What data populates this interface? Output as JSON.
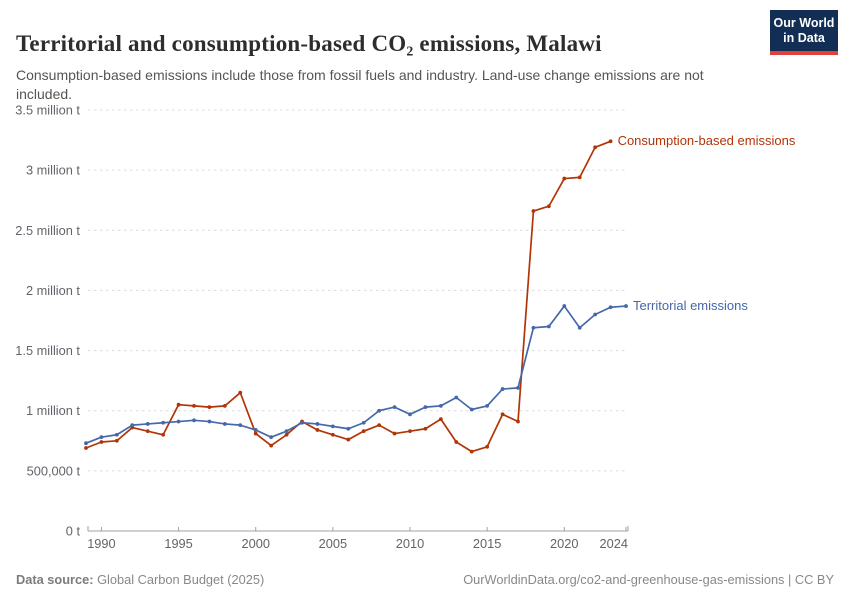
{
  "header": {
    "title": "Territorial and consumption-based CO₂ emissions, Malawi",
    "subtitle": "Consumption-based emissions include those from fossil fuels and industry. Land-use change emissions are not included.",
    "logo": {
      "line1": "Our World",
      "line2": "in Data"
    }
  },
  "chart_data": {
    "type": "line",
    "title": "Territorial and consumption-based CO₂ emissions, Malawi",
    "xlabel": "",
    "ylabel": "",
    "unit": "tonnes of CO₂",
    "xlim": [
      1989,
      2024
    ],
    "ylim": [
      0,
      3500000
    ],
    "grid": "horizontal-dashed",
    "legend_position": "line-end-labels-right",
    "x_ticks": [
      1990,
      1995,
      2000,
      2005,
      2010,
      2015,
      2020,
      2024
    ],
    "y_ticks": [
      {
        "value": 0.0,
        "label": "0 t"
      },
      {
        "value": 0.5,
        "label": "500,000 t"
      },
      {
        "value": 1.0,
        "label": "1 million t"
      },
      {
        "value": 1.5,
        "label": "1.5 million t"
      },
      {
        "value": 2.0,
        "label": "2 million t"
      },
      {
        "value": 2.5,
        "label": "2.5 million t"
      },
      {
        "value": 3.0,
        "label": "3 million t"
      },
      {
        "value": 3.5,
        "label": "3.5 million t"
      }
    ],
    "series": [
      {
        "name": "Consumption-based emissions",
        "color": "#b13507",
        "start_year": 1989,
        "values_million_t": [
          0.69,
          0.74,
          0.75,
          0.86,
          0.83,
          0.8,
          1.05,
          1.04,
          1.03,
          1.04,
          1.15,
          0.81,
          0.71,
          0.8,
          0.91,
          0.84,
          0.8,
          0.76,
          0.83,
          0.88,
          0.81,
          0.83,
          0.85,
          0.93,
          0.74,
          0.66,
          0.7,
          0.97,
          0.91,
          2.66,
          2.7,
          2.93,
          2.94,
          3.19,
          3.24
        ]
      },
      {
        "name": "Territorial emissions",
        "color": "#4568a9",
        "start_year": 1989,
        "values_million_t": [
          0.73,
          0.78,
          0.8,
          0.88,
          0.89,
          0.9,
          0.91,
          0.92,
          0.91,
          0.89,
          0.88,
          0.84,
          0.78,
          0.83,
          0.9,
          0.89,
          0.87,
          0.85,
          0.9,
          1.0,
          1.03,
          0.97,
          1.03,
          1.04,
          1.11,
          1.01,
          1.04,
          1.18,
          1.19,
          1.69,
          1.7,
          1.87,
          1.69,
          1.8,
          1.86,
          1.87
        ]
      }
    ],
    "colors": {
      "grid": "#dcdcdc",
      "axis": "#a0a0a0",
      "tick_text": "#63636b"
    }
  },
  "footer": {
    "source_label": "Data source:",
    "source_value": "Global Carbon Budget (2025)",
    "credit": "OurWorldinData.org/co2-and-greenhouse-gas-emissions | CC BY"
  }
}
